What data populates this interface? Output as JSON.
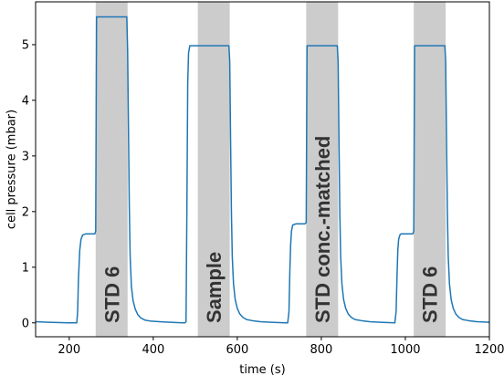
{
  "chart_data": {
    "type": "line",
    "title": "",
    "xlabel": "time (s)",
    "ylabel": "cell pressure (mbar)",
    "xlim": [
      120,
      1200
    ],
    "ylim": [
      -0.25,
      5.77
    ],
    "xticks": [
      200,
      400,
      600,
      800,
      1000,
      1200
    ],
    "yticks": [
      0,
      1,
      2,
      3,
      4,
      5
    ],
    "grid": false,
    "legend": "none",
    "colors": {
      "line": "#1f77b4",
      "band": "#cccccc",
      "band_label": "#333333",
      "axis": "#000000"
    },
    "bands": [
      {
        "x0": 263,
        "x1": 339,
        "label": "STD 6"
      },
      {
        "x0": 506,
        "x1": 582,
        "label": "Sample"
      },
      {
        "x0": 764,
        "x1": 840,
        "label": "STD conc.-matched"
      },
      {
        "x0": 1020,
        "x1": 1096,
        "label": "STD 6"
      }
    ],
    "series": [
      {
        "x": [
          120,
          150,
          200,
          218,
          220,
          222,
          225,
          228,
          232,
          240,
          252,
          261,
          263,
          265,
          300,
          337,
          339,
          341,
          343,
          345,
          348,
          352,
          357,
          363,
          370,
          380,
          395,
          415,
          440,
          470,
          475,
          478,
          480,
          482,
          484,
          487,
          495,
          540,
          580,
          582,
          584,
          586,
          588,
          591,
          595,
          600,
          606,
          613,
          622,
          635,
          655,
          680,
          715,
          720,
          723,
          725,
          727,
          729,
          732,
          740,
          755,
          761,
          764,
          766,
          800,
          838,
          840,
          842,
          844,
          846,
          849,
          853,
          858,
          864,
          871,
          880,
          895,
          915,
          940,
          975,
          978,
          980,
          982,
          984,
          987,
          990,
          1000,
          1012,
          1018,
          1020,
          1022,
          1060,
          1094,
          1096,
          1098,
          1100,
          1102,
          1105,
          1109,
          1114,
          1120,
          1127,
          1136,
          1150,
          1170,
          1200
        ],
        "y": [
          0.02,
          0.01,
          0.0,
          0.0,
          0.2,
          0.8,
          1.3,
          1.5,
          1.58,
          1.6,
          1.6,
          1.6,
          1.65,
          5.5,
          5.5,
          5.5,
          4.9,
          3.5,
          2.1,
          1.2,
          0.65,
          0.4,
          0.25,
          0.15,
          0.09,
          0.05,
          0.03,
          0.02,
          0.01,
          0.0,
          0.0,
          0.02,
          2.0,
          4.3,
          4.85,
          4.98,
          4.98,
          4.98,
          4.98,
          4.7,
          3.3,
          2.0,
          1.2,
          0.7,
          0.42,
          0.26,
          0.16,
          0.1,
          0.06,
          0.04,
          0.02,
          0.01,
          0.0,
          0.0,
          0.2,
          0.9,
          1.4,
          1.65,
          1.76,
          1.78,
          1.78,
          1.78,
          1.8,
          4.98,
          4.98,
          4.98,
          4.7,
          3.3,
          2.0,
          1.2,
          0.7,
          0.42,
          0.26,
          0.16,
          0.1,
          0.06,
          0.04,
          0.02,
          0.01,
          0.0,
          0.2,
          0.8,
          1.3,
          1.5,
          1.58,
          1.6,
          1.6,
          1.6,
          1.6,
          1.65,
          4.98,
          4.98,
          4.98,
          4.7,
          3.3,
          2.0,
          1.2,
          0.7,
          0.42,
          0.26,
          0.16,
          0.1,
          0.06,
          0.04,
          0.02,
          0.01
        ]
      }
    ]
  }
}
